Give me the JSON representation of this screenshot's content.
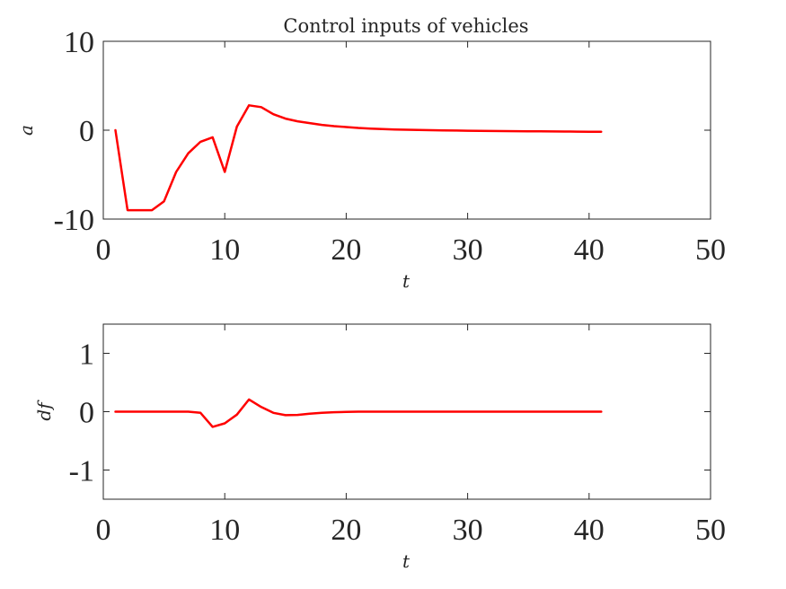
{
  "chart_data": [
    {
      "type": "line",
      "title": "Control inputs of vehicles",
      "xlabel": "t",
      "ylabel": "a",
      "xlim": [
        0,
        50
      ],
      "ylim": [
        -10,
        10
      ],
      "xticks": [
        0,
        10,
        20,
        30,
        40,
        50
      ],
      "yticks": [
        -10,
        0,
        10
      ],
      "grid": false,
      "color": "#ff0000",
      "series": [
        {
          "x": [
            1,
            2,
            3,
            4,
            5,
            6,
            7,
            8,
            9,
            10,
            11,
            12,
            13,
            14,
            15,
            16,
            17,
            18,
            19,
            20,
            21,
            22,
            23,
            24,
            25,
            26,
            27,
            28,
            29,
            30,
            31,
            32,
            33,
            34,
            35,
            36,
            37,
            38,
            39,
            40,
            41
          ],
          "values": [
            0,
            -9,
            -9,
            -9,
            -8,
            -4.7,
            -2.6,
            -1.3,
            -0.8,
            -4.7,
            0.4,
            2.8,
            2.6,
            1.8,
            1.3,
            1.0,
            0.8,
            0.6,
            0.45,
            0.35,
            0.25,
            0.18,
            0.12,
            0.08,
            0.05,
            0.02,
            0.0,
            -0.02,
            -0.04,
            -0.06,
            -0.08,
            -0.09,
            -0.1,
            -0.11,
            -0.12,
            -0.13,
            -0.14,
            -0.15,
            -0.16,
            -0.17,
            -0.18
          ]
        }
      ]
    },
    {
      "type": "line",
      "xlabel": "t",
      "ylabel": "df",
      "xlim": [
        0,
        50
      ],
      "ylim": [
        -1.5,
        1.5
      ],
      "xticks": [
        0,
        10,
        20,
        30,
        40,
        50
      ],
      "yticks": [
        -1,
        0,
        1
      ],
      "grid": false,
      "color": "#ff0000",
      "series": [
        {
          "x": [
            1,
            2,
            3,
            4,
            5,
            6,
            7,
            8,
            9,
            10,
            11,
            12,
            13,
            14,
            15,
            16,
            17,
            18,
            19,
            20,
            21,
            22,
            23,
            24,
            25,
            26,
            27,
            28,
            29,
            30,
            31,
            32,
            33,
            34,
            35,
            36,
            37,
            38,
            39,
            40,
            41
          ],
          "values": [
            0,
            0,
            0,
            0,
            0,
            0,
            0,
            -0.02,
            -0.26,
            -0.2,
            -0.05,
            0.21,
            0.08,
            -0.02,
            -0.06,
            -0.055,
            -0.035,
            -0.02,
            -0.01,
            -0.005,
            0,
            0,
            0,
            0,
            0,
            0,
            0,
            0,
            0,
            0,
            0,
            0,
            0,
            0,
            0,
            0,
            0,
            0,
            0,
            0,
            0
          ]
        }
      ]
    }
  ]
}
